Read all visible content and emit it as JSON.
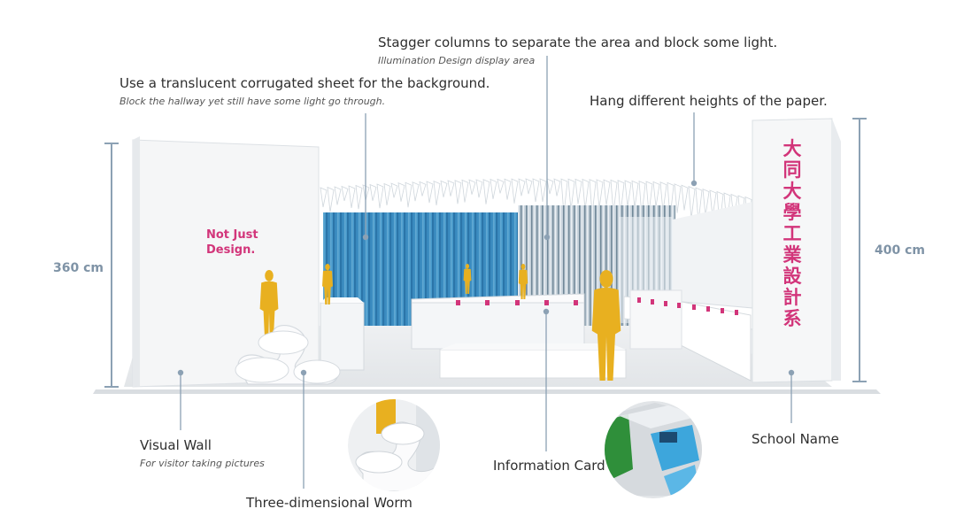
{
  "annotations": {
    "stagger": {
      "title": "Stagger columns to separate the area and block some light.",
      "subtitle": "Illumination Design display area"
    },
    "translucent": {
      "title": "Use a translucent corrugated sheet for the background.",
      "subtitle": "Block the hallway yet still have some light go through."
    },
    "hang": {
      "title": "Hang different heights of the paper."
    },
    "visual_wall": {
      "title": "Visual Wall",
      "subtitle": "For visitor taking pictures"
    },
    "worm": {
      "title": "Three-dimensional Worm"
    },
    "info_card": {
      "title": "Information Card"
    },
    "school_name": {
      "title": "School Name"
    }
  },
  "dimensions": {
    "left": "360 cm",
    "right": "400 cm"
  },
  "wall_text": {
    "line1": "Not Just",
    "line2": "Design."
  },
  "school_chars": [
    "大",
    "同",
    "大",
    "學",
    "工",
    "業",
    "設",
    "計",
    "系"
  ],
  "colors": {
    "leader": "#8ca1b4",
    "dim": "#7f93a6",
    "magenta": "#d2357a",
    "figure": "#e8b020",
    "blue": "#3d8fc2"
  }
}
